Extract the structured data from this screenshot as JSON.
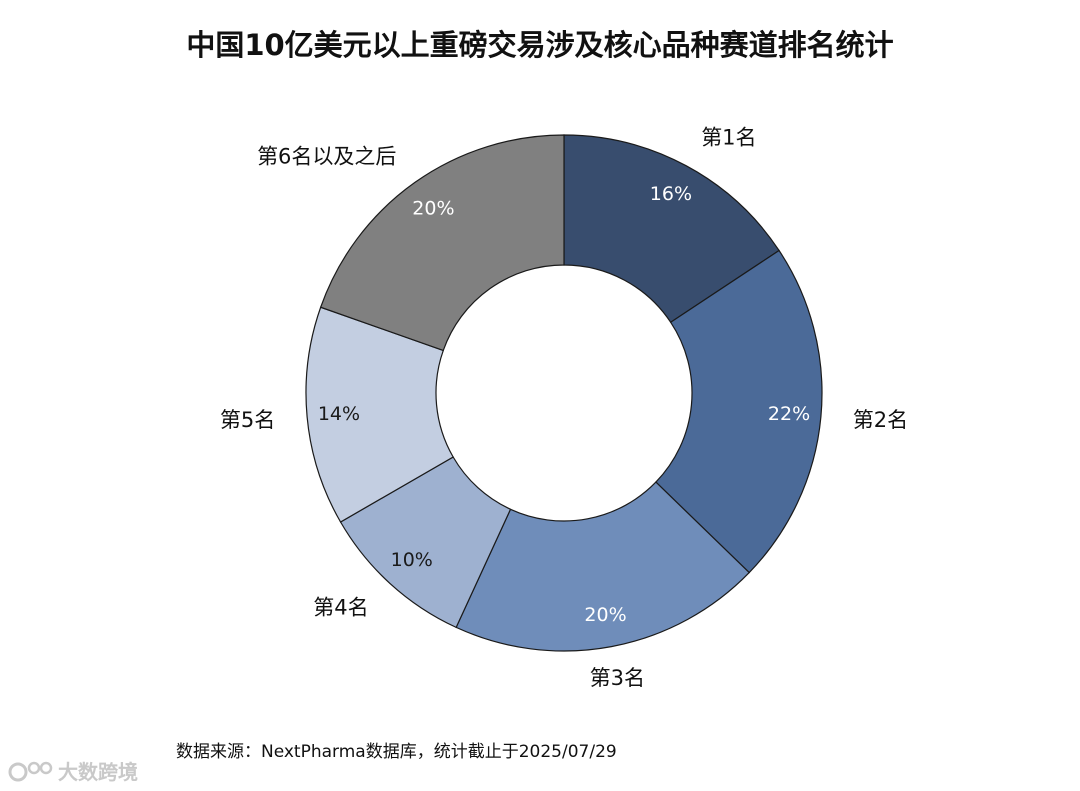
{
  "header": {
    "title": "中国10亿美元以上重磅交易涉及核心品种赛道排名统计"
  },
  "footer": {
    "source": "数据来源：NextPharma数据库，统计截止于2025/07/29",
    "watermark_text": "大数跨境",
    "watermark_icon": "brand-logo-icon"
  },
  "chart_data": {
    "type": "pie",
    "donut": true,
    "categories": [
      "第1名",
      "第2名",
      "第3名",
      "第4名",
      "第5名",
      "第6名以及之后"
    ],
    "values": [
      16,
      22,
      20,
      10,
      14,
      20
    ],
    "value_labels": [
      "16%",
      "22%",
      "20%",
      "10%",
      "14%",
      "20%"
    ],
    "colors": [
      "#384d6e",
      "#4b6a98",
      "#6f8dba",
      "#9eb1d0",
      "#c3cee1",
      "#808080"
    ],
    "label_colors": [
      "#ffffff",
      "#ffffff",
      "#ffffff",
      "#1a1a1a",
      "#1a1a1a",
      "#ffffff"
    ],
    "start_angle_deg": 0,
    "direction": "clockwise",
    "legend": "none"
  }
}
